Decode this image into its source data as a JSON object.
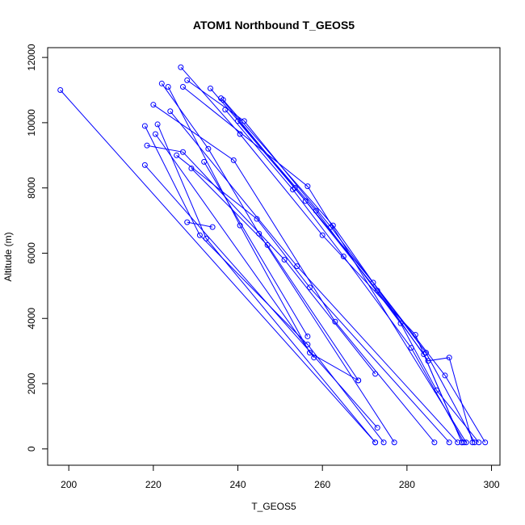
{
  "chart_data": {
    "type": "line",
    "title": "ATOM1 Northbound T_GEOS5",
    "xlabel": "T_GEOS5",
    "ylabel": "Altitude (m)",
    "xlim": [
      195,
      302
    ],
    "ylim": [
      -500,
      12300
    ],
    "x_ticks": [
      200,
      220,
      240,
      260,
      280,
      300
    ],
    "y_ticks": [
      0,
      2000,
      4000,
      6000,
      8000,
      10000,
      12000
    ],
    "grid": false,
    "legend": "none",
    "color": "#0000ff",
    "marker": "open-circle",
    "series": [
      {
        "x": [
          198.0,
          272.5
        ],
        "y": [
          11000,
          200
        ]
      },
      {
        "x": [
          218.0,
          273.0
        ],
        "y": [
          8700,
          650
        ]
      },
      {
        "x": [
          218.5,
          227.0,
          251.0,
          272.5
        ],
        "y": [
          9300,
          9100,
          5800,
          2300
        ]
      },
      {
        "x": [
          218.0,
          231.0,
          256.5,
          274.5
        ],
        "y": [
          9900,
          6550,
          3200,
          200
        ]
      },
      {
        "x": [
          220.5,
          258.0
        ],
        "y": [
          9650,
          2800
        ]
      },
      {
        "x": [
          221.0,
          232.5,
          272.5
        ],
        "y": [
          9950,
          6450,
          200
        ]
      },
      {
        "x": [
          220.0,
          239.0,
          263.0,
          286.5
        ],
        "y": [
          10550,
          8850,
          3900,
          200
        ]
      },
      {
        "x": [
          222.0,
          233.0,
          245.0,
          277.0
        ],
        "y": [
          11200,
          9200,
          6600,
          200
        ]
      },
      {
        "x": [
          223.5,
          240.5,
          257.0,
          268.5
        ],
        "y": [
          11100,
          6850,
          2950,
          2100
        ]
      },
      {
        "x": [
          224.0,
          254.0,
          292.0
        ],
        "y": [
          10350,
          5600,
          200
        ]
      },
      {
        "x": [
          225.5,
          244.5,
          257.0,
          290.0
        ],
        "y": [
          9000,
          7050,
          4950,
          200
        ]
      },
      {
        "x": [
          226.5,
          240.5,
          260.0,
          282.0,
          293.0
        ],
        "y": [
          11700,
          9650,
          6550,
          3500,
          200
        ]
      },
      {
        "x": [
          227.0,
          256.5,
          294.0
        ],
        "y": [
          11100,
          8050,
          200
        ]
      },
      {
        "x": [
          228.0,
          241.5,
          262.0,
          284.5,
          296.0
        ],
        "y": [
          11300,
          10050,
          6800,
          2950,
          200
        ]
      },
      {
        "x": [
          233.5,
          258.5,
          278.5,
          287.0,
          297.0
        ],
        "y": [
          11050,
          7300,
          3850,
          1800,
          200
        ]
      },
      {
        "x": [
          236.0,
          253.5,
          272.0,
          289.0,
          298.5
        ],
        "y": [
          10750,
          8000,
          5100,
          2250,
          200
        ]
      },
      {
        "x": [
          236.5,
          262.5,
          285.0,
          290.0,
          295.5
        ],
        "y": [
          10700,
          6850,
          2700,
          2800,
          200
        ]
      },
      {
        "x": [
          237.0,
          253.0,
          265.0,
          281.0,
          293.5
        ],
        "y": [
          10400,
          7950,
          5900,
          3100,
          200
        ]
      },
      {
        "x": [
          240.0,
          256.0,
          273.0,
          284.0,
          293.0
        ],
        "y": [
          10050,
          7600,
          4850,
          2900,
          200
        ]
      },
      {
        "x": [
          229.0,
          247.0,
          268.5
        ],
        "y": [
          8600,
          6250,
          2100
        ]
      },
      {
        "x": [
          228.0,
          234.0
        ],
        "y": [
          6950,
          6800
        ]
      },
      {
        "x": [
          232.0,
          256.5
        ],
        "y": [
          8800,
          3450
        ]
      }
    ]
  }
}
